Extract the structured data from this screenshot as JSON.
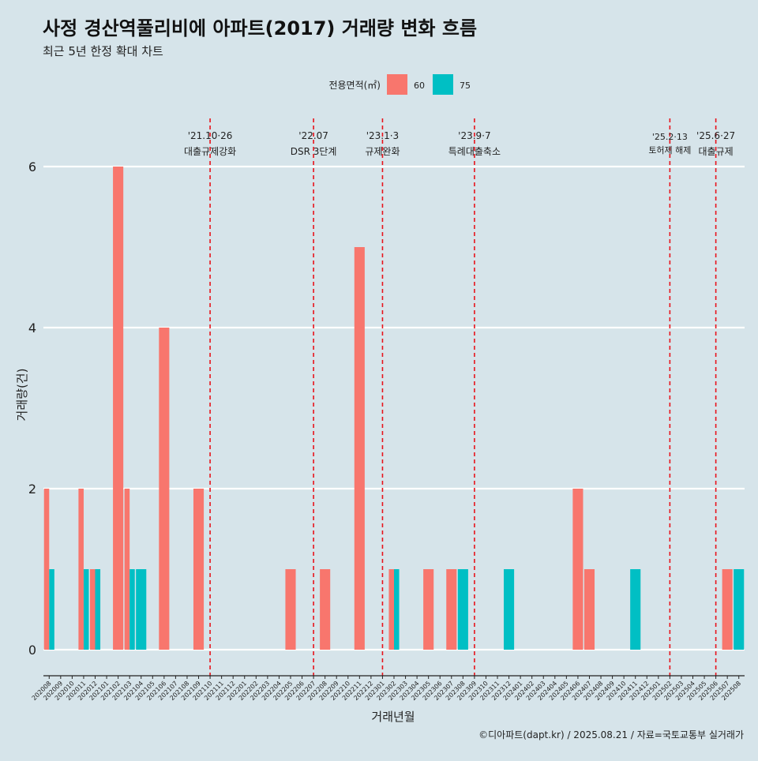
{
  "chart_data": {
    "type": "bar",
    "title": "사정 경산역풀리비에 아파트(2017) 거래량 변화 흐름",
    "subtitle": "최근 5년 한정 확대 차트",
    "xlabel": "거래년월",
    "ylabel": "거래량(건)",
    "ylim": [
      0,
      6
    ],
    "yticks": [
      0,
      2,
      4,
      6
    ],
    "grid": true,
    "legend": {
      "title": "전용면적(㎡)",
      "position": "top",
      "entries": [
        {
          "label": "60",
          "color": "#f8766d"
        },
        {
          "label": "75",
          "color": "#00bfc4"
        }
      ]
    },
    "categories": [
      "202008",
      "202009",
      "202010",
      "202011",
      "202012",
      "202101",
      "202102",
      "202103",
      "202104",
      "202105",
      "202106",
      "202107",
      "202108",
      "202109",
      "202110",
      "202111",
      "202112",
      "202201",
      "202202",
      "202203",
      "202204",
      "202205",
      "202206",
      "202207",
      "202208",
      "202209",
      "202210",
      "202211",
      "202212",
      "202301",
      "202302",
      "202303",
      "202304",
      "202305",
      "202306",
      "202307",
      "202308",
      "202309",
      "202310",
      "202311",
      "202312",
      "202401",
      "202402",
      "202403",
      "202404",
      "202405",
      "202406",
      "202407",
      "202408",
      "202409",
      "202410",
      "202411",
      "202412",
      "202501",
      "202502",
      "202503",
      "202504",
      "202505",
      "202506",
      "202507",
      "202508"
    ],
    "series": [
      {
        "name": "60",
        "color": "#f8766d",
        "values": [
          2,
          0,
          0,
          2,
          1,
          0,
          6,
          2,
          0,
          0,
          4,
          0,
          0,
          2,
          0,
          0,
          0,
          0,
          0,
          0,
          0,
          1,
          0,
          0,
          1,
          0,
          0,
          5,
          0,
          0,
          1,
          0,
          0,
          1,
          0,
          1,
          0,
          0,
          0,
          0,
          0,
          0,
          0,
          0,
          0,
          0,
          2,
          1,
          0,
          0,
          0,
          0,
          0,
          0,
          0,
          0,
          0,
          0,
          0,
          1,
          0
        ]
      },
      {
        "name": "75",
        "color": "#00bfc4",
        "values": [
          1,
          0,
          0,
          1,
          1,
          0,
          0,
          1,
          1,
          0,
          0,
          0,
          0,
          0,
          0,
          0,
          0,
          0,
          0,
          0,
          0,
          0,
          0,
          0,
          0,
          0,
          0,
          0,
          0,
          0,
          1,
          0,
          0,
          0,
          0,
          0,
          1,
          0,
          0,
          0,
          1,
          0,
          0,
          0,
          0,
          0,
          0,
          0,
          0,
          0,
          0,
          1,
          0,
          0,
          0,
          0,
          0,
          0,
          0,
          0,
          1
        ]
      }
    ],
    "annotations": [
      {
        "x": "202110",
        "date": "'21.10·26",
        "label": "대출규제강화"
      },
      {
        "x": "202207",
        "date": "'22.07",
        "label": "DSR 3단계"
      },
      {
        "x": "202301",
        "date": "'23.1·3",
        "label": "규제완화"
      },
      {
        "x": "202309",
        "date": "'23.9·7",
        "label": "특례대출축소"
      },
      {
        "x": "202502",
        "date": "'25.2·13",
        "label": "토허제 해제"
      },
      {
        "x": "202506",
        "date": "'25.6·27",
        "label": "대출규제"
      }
    ],
    "caption": "©디아파트(dapt.kr) / 2025.08.21 / 자료=국토교통부 실거래가"
  }
}
